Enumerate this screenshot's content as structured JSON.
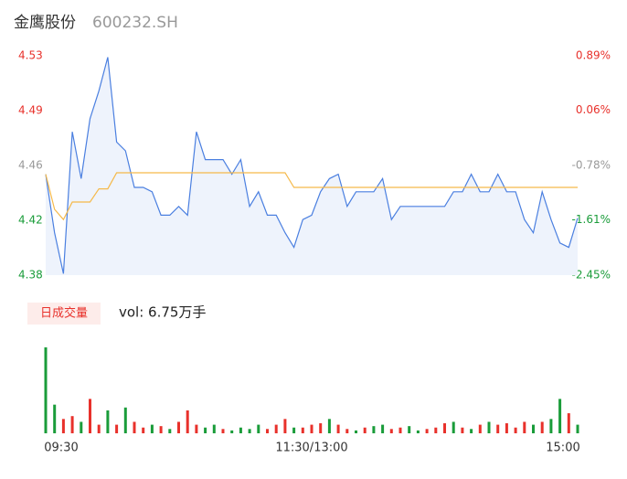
{
  "header": {
    "title": "金鹰股份",
    "code": "600232.SH"
  },
  "chart_data": [
    {
      "type": "line",
      "x": [
        0,
        4,
        8,
        12,
        16,
        20,
        24,
        28,
        32,
        36,
        40,
        44,
        48,
        52,
        56,
        60,
        64,
        68,
        72,
        76,
        80,
        84,
        88,
        92,
        96,
        100,
        104,
        108,
        112,
        116,
        120,
        124,
        128,
        132,
        136,
        140,
        144,
        148,
        152,
        156,
        160,
        164,
        168,
        172,
        176,
        180,
        184,
        188,
        192,
        196,
        200,
        204,
        208,
        212,
        216,
        220,
        224,
        228,
        232,
        236,
        240
      ],
      "xlim": [
        0,
        240
      ],
      "series": [
        {
          "color": "#4a7fe0",
          "values": [
            4.449,
            4.409,
            4.381,
            4.478,
            4.446,
            4.487,
            4.506,
            4.529,
            4.471,
            4.465,
            4.44,
            4.44,
            4.437,
            4.421,
            4.421,
            4.427,
            4.421,
            4.478,
            4.459,
            4.459,
            4.459,
            4.449,
            4.459,
            4.427,
            4.437,
            4.421,
            4.421,
            4.409,
            4.399,
            4.418,
            4.421,
            4.437,
            4.446,
            4.449,
            4.427,
            4.437,
            4.437,
            4.437,
            4.446,
            4.418,
            4.427,
            4.427,
            4.427,
            4.427,
            4.427,
            4.427,
            4.437,
            4.437,
            4.449,
            4.437,
            4.437,
            4.449,
            4.437,
            4.437,
            4.418,
            4.409,
            4.437,
            4.418,
            4.402,
            4.399,
            4.419
          ]
        },
        {
          "color": "#f5b94a",
          "values": [
            4.449,
            4.425,
            4.418,
            4.43,
            4.43,
            4.43,
            4.439,
            4.439,
            4.45,
            4.45,
            4.45,
            4.45,
            4.45,
            4.45,
            4.45,
            4.45,
            4.45,
            4.45,
            4.45,
            4.45,
            4.45,
            4.45,
            4.45,
            4.45,
            4.45,
            4.45,
            4.45,
            4.45,
            4.44,
            4.44,
            4.44,
            4.44,
            4.44,
            4.44,
            4.44,
            4.44,
            4.44,
            4.44,
            4.44,
            4.44,
            4.44,
            4.44,
            4.44,
            4.44,
            4.44,
            4.44,
            4.44,
            4.44,
            4.44,
            4.44,
            4.44,
            4.44,
            4.44,
            4.44,
            4.44,
            4.44,
            4.44,
            4.44,
            4.44,
            4.44,
            4.44
          ]
        }
      ],
      "ylim": [
        4.38,
        4.53
      ],
      "yticks": [
        {
          "value": 4.38,
          "label": "4.38"
        },
        {
          "value": 4.4175,
          "label": "4.42"
        },
        {
          "value": 4.455,
          "label": "4.46"
        },
        {
          "value": 4.4925,
          "label": "4.49"
        },
        {
          "value": 4.53,
          "label": "4.53"
        }
      ],
      "ytick_colors": [
        "#1a9c3a",
        "#1a9c3a",
        "#999999",
        "#e8312b",
        "#e8312b"
      ],
      "y2lim": [
        -2.45,
        0.89
      ],
      "y2ticks": [
        {
          "value": -2.45,
          "label": "-2.45%"
        },
        {
          "value": -1.61,
          "label": "-1.61%"
        },
        {
          "value": -0.78,
          "label": "-0.78%"
        },
        {
          "value": 0.06,
          "label": "0.06%"
        },
        {
          "value": 0.89,
          "label": "0.89%"
        }
      ],
      "fill_color": "#eef3fc"
    },
    {
      "type": "bar",
      "legend": "日成交量",
      "annotation": "vol: 6.75万手",
      "x": [
        0,
        4,
        8,
        12,
        16,
        20,
        24,
        28,
        32,
        36,
        40,
        44,
        48,
        52,
        56,
        60,
        64,
        68,
        72,
        76,
        80,
        84,
        88,
        92,
        96,
        100,
        104,
        108,
        112,
        116,
        120,
        124,
        128,
        132,
        136,
        140,
        144,
        148,
        152,
        156,
        160,
        164,
        168,
        172,
        176,
        180,
        184,
        188,
        192,
        196,
        200,
        204,
        208,
        212,
        216,
        220,
        224,
        228,
        232,
        236,
        240
      ],
      "xlim": [
        0,
        240
      ],
      "xticks": [
        {
          "value": 0,
          "label": "09:30"
        },
        {
          "value": 120,
          "label": "11:30/13:00"
        },
        {
          "value": 240,
          "label": "15:00"
        }
      ],
      "ylim": [
        0,
        3000
      ],
      "values": [
        3000,
        1000,
        500,
        600,
        400,
        1200,
        300,
        800,
        300,
        900,
        400,
        200,
        300,
        250,
        150,
        400,
        800,
        300,
        200,
        300,
        150,
        100,
        200,
        150,
        300,
        150,
        300,
        500,
        200,
        200,
        300,
        350,
        500,
        300,
        150,
        100,
        200,
        250,
        300,
        150,
        200,
        250,
        100,
        150,
        200,
        350,
        400,
        200,
        150,
        300,
        400,
        300,
        350,
        200,
        400,
        300,
        400,
        500,
        1200,
        700,
        300
      ],
      "colors": [
        "#1a9c3a",
        "#1a9c3a",
        "#e8312b",
        "#e8312b",
        "#1a9c3a",
        "#e8312b",
        "#e8312b",
        "#1a9c3a",
        "#e8312b",
        "#1a9c3a",
        "#e8312b",
        "#e8312b",
        "#1a9c3a",
        "#e8312b",
        "#1a9c3a",
        "#e8312b",
        "#e8312b",
        "#e8312b",
        "#1a9c3a",
        "#1a9c3a",
        "#e8312b",
        "#1a9c3a",
        "#1a9c3a",
        "#1a9c3a",
        "#1a9c3a",
        "#e8312b",
        "#e8312b",
        "#e8312b",
        "#1a9c3a",
        "#e8312b",
        "#e8312b",
        "#e8312b",
        "#1a9c3a",
        "#e8312b",
        "#e8312b",
        "#1a9c3a",
        "#e8312b",
        "#1a9c3a",
        "#1a9c3a",
        "#e8312b",
        "#e8312b",
        "#1a9c3a",
        "#1a9c3a",
        "#e8312b",
        "#e8312b",
        "#e8312b",
        "#1a9c3a",
        "#e8312b",
        "#1a9c3a",
        "#e8312b",
        "#1a9c3a",
        "#e8312b",
        "#e8312b",
        "#e8312b",
        "#e8312b",
        "#1a9c3a",
        "#e8312b",
        "#1a9c3a",
        "#1a9c3a",
        "#e8312b",
        "#1a9c3a"
      ]
    }
  ]
}
